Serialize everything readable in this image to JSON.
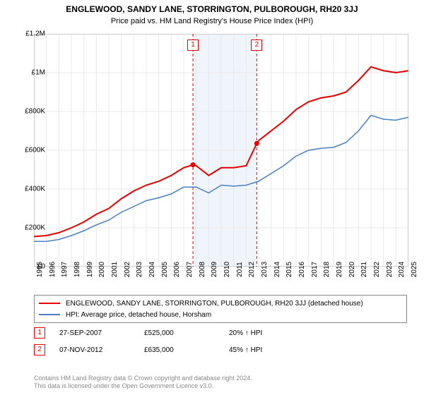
{
  "title": "ENGLEWOOD, SANDY LANE, STORRINGTON, PULBOROUGH, RH20 3JJ",
  "subtitle": "Price paid vs. HM Land Registry's House Price Index (HPI)",
  "chart": {
    "type": "line",
    "background_color": "#ffffff",
    "plot_border_color": "#cccccc",
    "grid_color": "#e8e8e8",
    "shaded_band": {
      "x_start": 2007.74,
      "x_end": 2012.85,
      "color": "#f0f4fb"
    },
    "xlim": [
      1995,
      2025
    ],
    "ylim": [
      0,
      1200000
    ],
    "xticks": [
      1995,
      1996,
      1997,
      1998,
      1999,
      2000,
      2001,
      2002,
      2003,
      2004,
      2005,
      2006,
      2007,
      2008,
      2009,
      2010,
      2011,
      2012,
      2013,
      2014,
      2015,
      2016,
      2017,
      2018,
      2019,
      2020,
      2021,
      2022,
      2023,
      2024,
      2025
    ],
    "yticks": [
      0,
      200000,
      400000,
      600000,
      800000,
      1000000,
      1200000
    ],
    "ytick_labels": [
      "£0",
      "£200K",
      "£400K",
      "£600K",
      "£800K",
      "£1M",
      "£1.2M"
    ],
    "tick_fontsize": 10,
    "title_fontsize": 12,
    "series": [
      {
        "name": "ENGLEWOOD, SANDY LANE, STORRINGTON, PULBOROUGH, RH20 3JJ (detached house)",
        "color": "#e60000",
        "line_width": 2,
        "data": [
          [
            1995,
            155000
          ],
          [
            1996,
            160000
          ],
          [
            1997,
            175000
          ],
          [
            1998,
            200000
          ],
          [
            1999,
            230000
          ],
          [
            2000,
            270000
          ],
          [
            2001,
            300000
          ],
          [
            2002,
            350000
          ],
          [
            2003,
            390000
          ],
          [
            2004,
            420000
          ],
          [
            2005,
            440000
          ],
          [
            2006,
            470000
          ],
          [
            2007,
            510000
          ],
          [
            2007.74,
            525000
          ],
          [
            2008,
            520000
          ],
          [
            2009,
            470000
          ],
          [
            2010,
            510000
          ],
          [
            2011,
            510000
          ],
          [
            2012,
            520000
          ],
          [
            2012.85,
            635000
          ],
          [
            2013,
            650000
          ],
          [
            2014,
            700000
          ],
          [
            2015,
            750000
          ],
          [
            2016,
            810000
          ],
          [
            2017,
            850000
          ],
          [
            2018,
            870000
          ],
          [
            2019,
            880000
          ],
          [
            2020,
            900000
          ],
          [
            2021,
            960000
          ],
          [
            2022,
            1030000
          ],
          [
            2023,
            1010000
          ],
          [
            2024,
            1000000
          ],
          [
            2025,
            1010000
          ]
        ],
        "markers": [
          {
            "x": 2007.74,
            "y": 525000
          },
          {
            "x": 2012.85,
            "y": 635000
          }
        ]
      },
      {
        "name": "HPI: Average price, detached house, Horsham",
        "color": "#4a7fc4",
        "line_width": 1.5,
        "data": [
          [
            1995,
            130000
          ],
          [
            1996,
            130000
          ],
          [
            1997,
            140000
          ],
          [
            1998,
            160000
          ],
          [
            1999,
            185000
          ],
          [
            2000,
            215000
          ],
          [
            2001,
            240000
          ],
          [
            2002,
            280000
          ],
          [
            2003,
            310000
          ],
          [
            2004,
            340000
          ],
          [
            2005,
            355000
          ],
          [
            2006,
            375000
          ],
          [
            2007,
            410000
          ],
          [
            2008,
            410000
          ],
          [
            2009,
            380000
          ],
          [
            2010,
            420000
          ],
          [
            2011,
            415000
          ],
          [
            2012,
            420000
          ],
          [
            2013,
            440000
          ],
          [
            2014,
            480000
          ],
          [
            2015,
            520000
          ],
          [
            2016,
            570000
          ],
          [
            2017,
            600000
          ],
          [
            2018,
            610000
          ],
          [
            2019,
            615000
          ],
          [
            2020,
            640000
          ],
          [
            2021,
            700000
          ],
          [
            2022,
            780000
          ],
          [
            2023,
            760000
          ],
          [
            2024,
            755000
          ],
          [
            2025,
            770000
          ]
        ]
      }
    ],
    "event_lines": [
      {
        "x": 2007.74,
        "color": "#e60000",
        "dash": "4,3",
        "label": "1",
        "label_y_top": 8
      },
      {
        "x": 2012.85,
        "color": "#e60000",
        "dash": "4,3",
        "label": "2",
        "label_y_top": 8
      }
    ]
  },
  "legend": {
    "border_color": "#888888",
    "items": [
      {
        "color": "#e60000",
        "width": 2,
        "label": "ENGLEWOOD, SANDY LANE, STORRINGTON, PULBOROUGH, RH20 3JJ (detached house)"
      },
      {
        "color": "#4a7fc4",
        "width": 1.5,
        "label": "HPI: Average price, detached house, Horsham"
      }
    ]
  },
  "annotations": [
    {
      "num": "1",
      "box_color": "#e60000",
      "date": "27-SEP-2007",
      "price": "£525,000",
      "pct": "20% ↑ HPI"
    },
    {
      "num": "2",
      "box_color": "#e60000",
      "date": "07-NOV-2012",
      "price": "£635,000",
      "pct": "45% ↑ HPI"
    }
  ],
  "footer": {
    "line1": "Contains HM Land Registry data © Crown copyright and database right 2024.",
    "line2": "This data is licensed under the Open Government Licence v3.0.",
    "color": "#888888",
    "fontsize": 9
  }
}
